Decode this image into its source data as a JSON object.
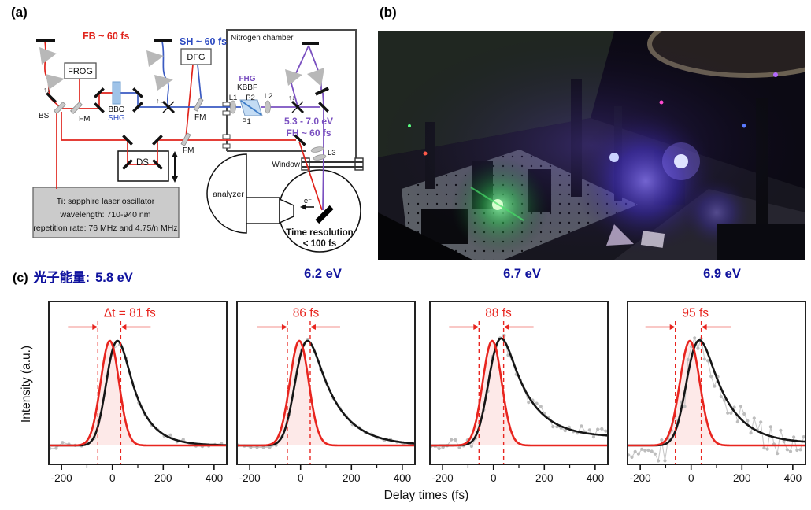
{
  "panel_a": {
    "label": "(a)",
    "labels": {
      "fb": "FB ~ 60 fs",
      "frog": "FROG",
      "bs": "BS",
      "fm": "FM",
      "bbo": "BBO",
      "shg": "SHG",
      "sh": "SH ~ 60 fs",
      "dfg": "DFG",
      "chamber": "Nitrogen chamber",
      "fhg": "FHG",
      "kbbf": "KBBF",
      "l1": "L1",
      "p1": "P1",
      "p2": "P2",
      "l2": "L2",
      "ev_range": "5.3 - 7.0 eV",
      "fh": "FH ~ 60 fs",
      "ds": "DS",
      "l3": "L3",
      "window": "Window",
      "analyzer": "analyzer",
      "electron": "e⁻",
      "time_res_1": "Time resolution",
      "time_res_2": "< 100 fs",
      "flip": "↑↓",
      "laser_line1": "Ti: sapphire laser oscillator",
      "laser_line2": "wavelength: 710-940 nm",
      "laser_line3": "repetition rate: 76 MHz and 4.75/n MHz"
    },
    "colors": {
      "red_beam": "#e0241c",
      "blue_beam": "#3a5ac2",
      "purple_beam": "#7a50c0",
      "text_blue": "#2b49c0",
      "text_purple": "#7a50c0"
    }
  },
  "panel_b": {
    "label": "(b)"
  },
  "panel_c": {
    "label": "(c)",
    "header_prefix": "光子能量:",
    "ylabel": "Intensity (a.u.)",
    "xlabel": "Delay times (fs)",
    "colors": {
      "red": "#e8251f",
      "black": "#161616",
      "gray": "#bdbdbd",
      "gray_line": "#c9c9c9",
      "pink_fill": "rgba(232,37,31,0.10)",
      "navy": "#10139e"
    }
  },
  "chart_data": [
    {
      "type": "line",
      "photon_energy": "5.8 eV",
      "annotation": "Δt = 81 fs",
      "dt_fs": 81,
      "x_range": [
        -250,
        450
      ],
      "x_ticks": [
        -200,
        0,
        200,
        400
      ],
      "x_minor_ticks": [
        -100,
        100,
        300
      ],
      "dashed_x_fs": [
        -57,
        33
      ],
      "red_gaussian": {
        "center_fs": -10,
        "fwhm_fs": 85
      },
      "black_fit": {
        "mu_fs": -15,
        "sigma_fs": 34,
        "tau_fs": 70,
        "tail_offset": 0
      },
      "gray_points": {
        "noise": 0.03,
        "step_fs": 25,
        "seed": 7
      }
    },
    {
      "type": "line",
      "photon_energy": "6.2 eV",
      "annotation": "86 fs",
      "dt_fs": 86,
      "x_range": [
        -250,
        450
      ],
      "x_ticks": [
        -200,
        0,
        200,
        400
      ],
      "x_minor_ticks": [
        -100,
        100,
        300
      ],
      "dashed_x_fs": [
        -52,
        38
      ],
      "red_gaussian": {
        "center_fs": -5,
        "fwhm_fs": 88
      },
      "black_fit": {
        "mu_fs": -15,
        "sigma_fs": 36,
        "tau_fs": 100,
        "tail_offset": 0
      },
      "gray_points": {
        "noise": 0.02,
        "step_fs": 25,
        "seed": 13
      }
    },
    {
      "type": "line",
      "photon_energy": "6.7 eV",
      "annotation": "88 fs",
      "dt_fs": 88,
      "x_range": [
        -250,
        450
      ],
      "x_ticks": [
        -200,
        0,
        200,
        400
      ],
      "x_minor_ticks": [
        -100,
        100,
        300
      ],
      "dashed_x_fs": [
        -57,
        40
      ],
      "red_gaussian": {
        "center_fs": -5,
        "fwhm_fs": 88
      },
      "black_fit": {
        "mu_fs": -12,
        "sigma_fs": 36,
        "tau_fs": 95,
        "tail_offset": 0.08
      },
      "gray_points": {
        "noise": 0.07,
        "step_fs": 16,
        "seed": 21
      }
    },
    {
      "type": "line",
      "photon_energy": "6.9 eV",
      "annotation": "95 fs",
      "dt_fs": 95,
      "x_range": [
        -250,
        450
      ],
      "x_ticks": [
        -200,
        0,
        200,
        400
      ],
      "x_minor_ticks": [
        -100,
        100,
        300
      ],
      "dashed_x_fs": [
        -62,
        40
      ],
      "red_gaussian": {
        "center_fs": -5,
        "fwhm_fs": 92
      },
      "black_fit": {
        "mu_fs": -10,
        "sigma_fs": 38,
        "tau_fs": 95,
        "tail_offset": 0.02
      },
      "gray_points": {
        "noise": 0.16,
        "step_fs": 13,
        "seed": 29
      }
    }
  ]
}
